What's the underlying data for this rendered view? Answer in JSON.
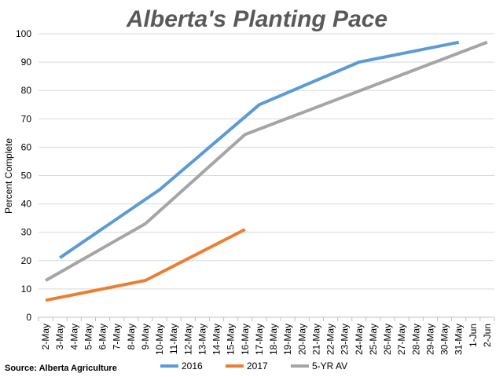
{
  "chart_data": {
    "type": "line",
    "title": "Alberta's Planting Pace",
    "ylabel": "Percent Complete",
    "xlabel": "",
    "ylim": [
      0,
      100
    ],
    "y_ticks": [
      0,
      10,
      20,
      30,
      40,
      50,
      60,
      70,
      80,
      90,
      100
    ],
    "grid": "horizontal",
    "legend_position": "bottom",
    "categories": [
      "2-May",
      "3-May",
      "4-May",
      "5-May",
      "6-May",
      "7-May",
      "8-May",
      "9-May",
      "10-May",
      "11-May",
      "12-May",
      "13-May",
      "14-May",
      "15-May",
      "16-May",
      "17-May",
      "18-May",
      "19-May",
      "20-May",
      "21-May",
      "22-May",
      "23-May",
      "24-May",
      "25-May",
      "26-May",
      "27-May",
      "28-May",
      "29-May",
      "30-May",
      "31-May",
      "1-Jun",
      "2-Jun"
    ],
    "series": [
      {
        "name": "2016",
        "color": "#5b9bd5",
        "points": [
          [
            "3-May",
            21
          ],
          [
            "10-May",
            45
          ],
          [
            "17-May",
            75
          ],
          [
            "24-May",
            90
          ],
          [
            "31-May",
            97
          ]
        ]
      },
      {
        "name": "2017",
        "color": "#ed7d31",
        "points": [
          [
            "2-May",
            6
          ],
          [
            "9-May",
            13
          ],
          [
            "16-May",
            31
          ]
        ]
      },
      {
        "name": "5-YR AV",
        "color": "#a5a5a5",
        "points": [
          [
            "2-May",
            13
          ],
          [
            "9-May",
            33
          ],
          [
            "16-May",
            64.5
          ],
          [
            "2-Jun",
            97
          ]
        ]
      }
    ],
    "source": "Source: Alberta Agriculture"
  }
}
